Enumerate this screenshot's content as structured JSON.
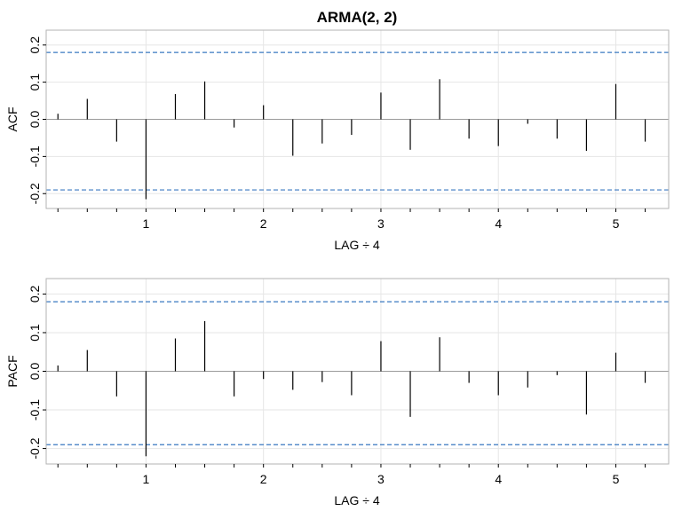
{
  "title": "ARMA(2, 2)",
  "colors": {
    "grid": "#e6e6e6",
    "frame": "#b3b3b3",
    "bar": "#000000",
    "conf": "#3a78c0",
    "zero": "#9a9a9a"
  },
  "chart_data": [
    {
      "type": "bar",
      "ylabel": "ACF",
      "xlabel": "LAG ÷ 4",
      "xlim": [
        0.15,
        5.45
      ],
      "ylim": [
        -0.24,
        0.24
      ],
      "x_ticks": [
        1,
        2,
        3,
        4,
        5
      ],
      "x_tick_labels": [
        "1",
        "2",
        "3",
        "4",
        "5"
      ],
      "y_ticks": [
        -0.2,
        -0.1,
        0.0,
        0.1,
        0.2
      ],
      "y_tick_labels": [
        "-0.2",
        "-0.1",
        "0.0",
        "0.1",
        "0.2"
      ],
      "conf_limits": [
        0.18,
        -0.19
      ],
      "grid": true,
      "x": [
        0.25,
        0.5,
        0.75,
        1.0,
        1.25,
        1.5,
        1.75,
        2.0,
        2.25,
        2.5,
        2.75,
        3.0,
        3.25,
        3.5,
        3.75,
        4.0,
        4.25,
        4.5,
        4.75,
        5.0,
        5.25
      ],
      "values": [
        0.015,
        0.055,
        -0.06,
        -0.215,
        0.068,
        0.102,
        -0.022,
        0.038,
        -0.098,
        -0.065,
        -0.042,
        0.072,
        -0.082,
        0.108,
        -0.052,
        -0.072,
        -0.012,
        -0.052,
        -0.085,
        0.095,
        -0.06
      ]
    },
    {
      "type": "bar",
      "ylabel": "PACF",
      "xlabel": "LAG ÷ 4",
      "xlim": [
        0.15,
        5.45
      ],
      "ylim": [
        -0.24,
        0.24
      ],
      "x_ticks": [
        1,
        2,
        3,
        4,
        5
      ],
      "x_tick_labels": [
        "1",
        "2",
        "3",
        "4",
        "5"
      ],
      "y_ticks": [
        -0.2,
        -0.1,
        0.0,
        0.1,
        0.2
      ],
      "y_tick_labels": [
        "-0.2",
        "-0.1",
        "0.0",
        "0.1",
        "0.2"
      ],
      "conf_limits": [
        0.18,
        -0.19
      ],
      "grid": true,
      "x": [
        0.25,
        0.5,
        0.75,
        1.0,
        1.25,
        1.5,
        1.75,
        2.0,
        2.25,
        2.5,
        2.75,
        3.0,
        3.25,
        3.5,
        3.75,
        4.0,
        4.25,
        4.5,
        4.75,
        5.0,
        5.25
      ],
      "values": [
        0.015,
        0.055,
        -0.065,
        -0.22,
        0.085,
        0.13,
        -0.065,
        -0.02,
        -0.048,
        -0.028,
        -0.062,
        0.078,
        -0.118,
        0.088,
        -0.03,
        -0.062,
        -0.042,
        -0.01,
        -0.112,
        0.048,
        -0.03
      ]
    }
  ]
}
